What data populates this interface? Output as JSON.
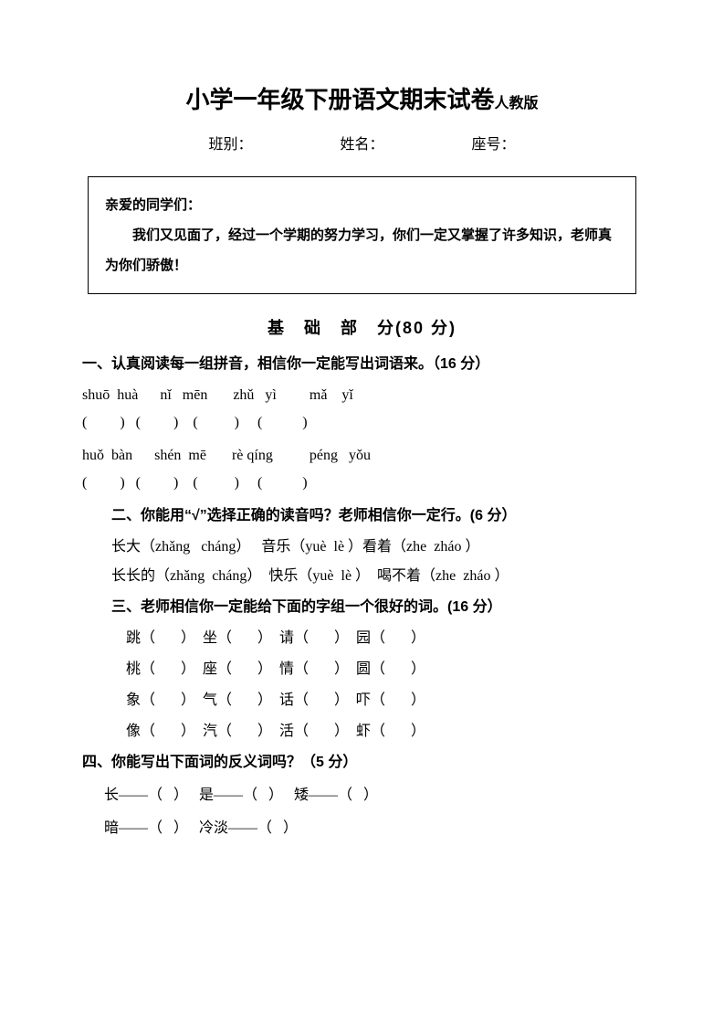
{
  "title": {
    "main": "小学一年级下册语文期末试卷",
    "sub": "人教版"
  },
  "info": {
    "class_label": "班别：",
    "name_label": "姓名：",
    "seat_label": "座号："
  },
  "notice": {
    "greet": "亲爱的同学们：",
    "body": "我们又见面了，经过一个学期的努力学习，你们一定又掌握了许多知识，老师真为你们骄傲！"
  },
  "section_header": "基　础　部　分(80 分)",
  "q1": {
    "head": "一、认真阅读每一组拼音，相信你一定能写出词语来。（16 分）",
    "pinyin1": "shuō  huà      nǐ   mēn       zhǔ   yì         mǎ    yǐ",
    "paren1": "(         )   (         )    (          )     (           )",
    "pinyin2": "huǒ  bàn      shén  mē       rè qíng          péng   yǒu",
    "paren2": "(         )   (         )    (          )     (           )"
  },
  "q2": {
    "head": "二、你能用“√”选择正确的读音吗？老师相信你一定行。(6 分）",
    "line1": "长大（zhǎng   cháng）   音乐（yuè  lè ）看着（zhe  zháo ）",
    "line2": "长长的（zhǎng  cháng）  快乐（yuè  lè ）  喝不着（zhe  zháo ）"
  },
  "q3": {
    "head": "三、老师相信你一定能给下面的字组一个很好的词。(16 分）",
    "r1": "跳（       ）  坐（       ）  请（       ）  园（       ）",
    "r2": "桃（       ）  座（       ）  情（       ）  圆（       ）",
    "r3": "象（       ）  气（       ）  话（       ）  吓（       ）",
    "r4": "像（       ）  汽（       ）  活（       ）  虾（       ）"
  },
  "q4": {
    "head": "四、你能写出下面词的反义词吗？（5 分）",
    "r1": "长——（   ）   是——（   ）   矮——（   ）",
    "r2": "暗——（   ）   冷淡——（   ）"
  }
}
